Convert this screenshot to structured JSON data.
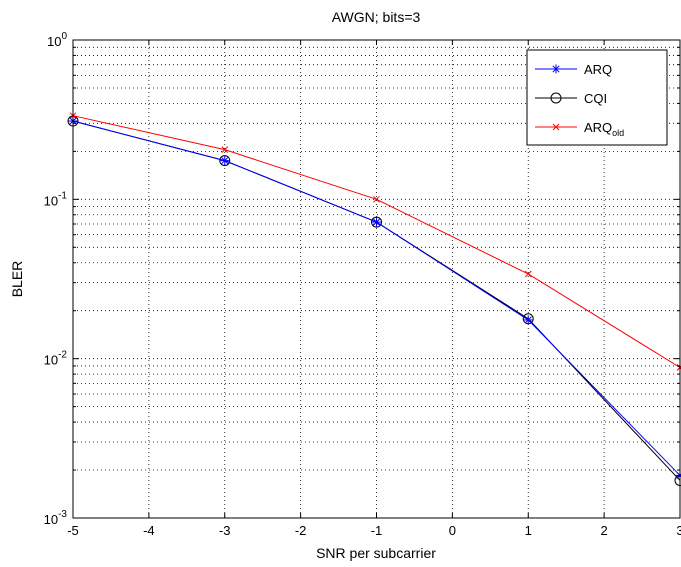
{
  "chart_data": {
    "type": "line",
    "title": "AWGN; bits=3",
    "xlabel": "SNR per subcarrier",
    "ylabel": "BLER",
    "xlim": [
      -5,
      3
    ],
    "ylim": [
      0.001,
      1
    ],
    "yscale": "log",
    "grid": true,
    "legend_position": "top-right",
    "x_ticks": [
      "-5",
      "-4",
      "-3",
      "-2",
      "-1",
      "0",
      "1",
      "2",
      "3"
    ],
    "y_ticks": [
      {
        "base": "10",
        "exp": "-3"
      },
      {
        "base": "10",
        "exp": "-2"
      },
      {
        "base": "10",
        "exp": "-1"
      },
      {
        "base": "10",
        "exp": "0"
      }
    ],
    "series": [
      {
        "name": "ARQ",
        "name_sub": "",
        "color": "#0000ff",
        "marker": "asterisk",
        "x": [
          -5,
          -3,
          -1,
          1,
          3
        ],
        "y": [
          0.31,
          0.175,
          0.072,
          0.0175,
          0.00185
        ]
      },
      {
        "name": "CQI",
        "name_sub": "",
        "color": "#000000",
        "marker": "circle",
        "x": [
          -5,
          -3,
          -1,
          1,
          3
        ],
        "y": [
          0.31,
          0.175,
          0.072,
          0.0178,
          0.00172
        ]
      },
      {
        "name": "ARQ",
        "name_sub": "old",
        "color": "#ff0000",
        "marker": "x",
        "x": [
          -5,
          -3,
          -1,
          1,
          3
        ],
        "y": [
          0.335,
          0.205,
          0.1,
          0.034,
          0.0088
        ]
      }
    ]
  }
}
